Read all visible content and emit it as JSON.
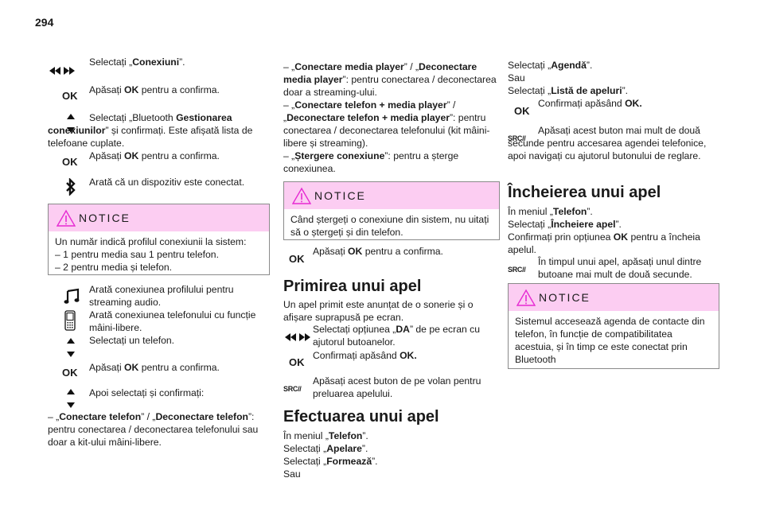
{
  "page_number": "294",
  "col1": {
    "p1": [
      "Selectați „",
      {
        "b": "Conexiuni"
      },
      "”."
    ],
    "p2": [
      "Apăsați ",
      {
        "b": "OK"
      },
      " pentru a confirma."
    ],
    "p3": [
      "Selectați „Bluetooth ",
      {
        "b": "Gestionarea conexiunilor"
      },
      "” și confirmați. Este afișată lista de telefoane cuplate."
    ],
    "p4": [
      "Apăsați ",
      {
        "b": "OK"
      },
      " pentru a confirma."
    ],
    "p5": [
      "Arată că un dispozitiv este conectat."
    ],
    "notice": {
      "title": "NOTICE",
      "lines": [
        [
          "Un număr indică profilul conexiunii la sistem:"
        ],
        [
          "–  1 pentru media sau 1 pentru telefon."
        ],
        [
          "–  2 pentru media și telefon."
        ]
      ]
    },
    "p6": [
      "Arată conexiunea profilului pentru streaming audio."
    ],
    "p7": [
      "Arată conexiunea telefonului cu funcție mâini-libere."
    ],
    "p8": [
      "Selectați un telefon."
    ],
    "p9": [
      "Apăsați ",
      {
        "b": "OK"
      },
      " pentru a confirma."
    ],
    "p10": [
      "Apoi selectați și confirmați:"
    ],
    "p11": [
      "–  „",
      {
        "b": "Conectare telefon"
      },
      "” / „",
      {
        "b": "Deconectare telefon"
      },
      "”: pentru conectarea / deconectarea telefonului sau doar a kit-ului mâini-libere."
    ]
  },
  "col2": {
    "p1": [
      "–  „",
      {
        "b": "Conectare media player"
      },
      "” / „",
      {
        "b": "Deconectare media player"
      },
      "”: pentru conectarea / deconectarea doar a streaming-ului."
    ],
    "p2": [
      "–  „",
      {
        "b": "Conectare telefon + media player"
      },
      "” / „",
      {
        "b": "Deconectare telefon + media player"
      },
      "”: pentru conectarea / deconectarea telefonului (kit mâini-libere și streaming)."
    ],
    "p3": [
      "–  „",
      {
        "b": "Ștergere conexiune"
      },
      "”: pentru a șterge conexiunea."
    ],
    "notice": {
      "title": "NOTICE",
      "lines": [
        [
          "Când ștergeți o conexiune din sistem, nu uitați să o ștergeți și din telefon."
        ]
      ]
    },
    "p4": [
      "Apăsați ",
      {
        "b": "OK"
      },
      " pentru a confirma."
    ],
    "heading1": "Primirea unui apel",
    "p5": [
      "Un apel primit este anunțat de o sonerie și o afișare suprapusă pe ecran."
    ],
    "p6": [
      "Selectați opțiunea „",
      {
        "b": "DA"
      },
      "” de pe ecran cu ajutorul butoanelor."
    ],
    "p7": [
      "Confirmați apăsând ",
      {
        "b": "OK."
      }
    ],
    "p8": [
      "Apăsați acest buton de pe volan pentru preluarea apelului."
    ],
    "heading2": "Efectuarea unui apel",
    "p9": [
      "În meniul „",
      {
        "b": "Telefon"
      },
      "”."
    ],
    "p10": [
      "Selectați „",
      {
        "b": "Apelare"
      },
      "”."
    ],
    "p11": [
      "Selectați „",
      {
        "b": "Formează"
      },
      "”."
    ],
    "p12": [
      "Sau"
    ]
  },
  "col3": {
    "p1": [
      "Selectați „",
      {
        "b": "Agendă"
      },
      "”."
    ],
    "p2": [
      "Sau"
    ],
    "p3": [
      "Selectați „",
      {
        "b": "Listă de apeluri"
      },
      "”."
    ],
    "p4": [
      "Confirmați apăsând ",
      {
        "b": "OK."
      }
    ],
    "p5": [
      "Apăsați acest buton mai mult de două secunde pentru accesarea agendei telefonice, apoi navigați cu ajutorul butonului de reglare."
    ],
    "heading1": "Încheierea unui apel",
    "p6": [
      "În meniul „",
      {
        "b": "Telefon"
      },
      "”."
    ],
    "p7": [
      "Selectați „",
      {
        "b": "Încheiere apel"
      },
      "”."
    ],
    "p8": [
      "Confirmați prin opțiunea ",
      {
        "b": "OK"
      },
      " pentru a încheia apelul."
    ],
    "p9": [
      "În timpul unui apel, apăsați unul dintre butoane mai mult de două secunde."
    ],
    "notice": {
      "title": "NOTICE",
      "lines": [
        [
          "Sistemul accesează agenda de contacte din telefon, în funcție de compatibilitatea acestuia, și în timp ce este conectat prin Bluetooth"
        ]
      ]
    }
  },
  "icons": {
    "ok_label": "OK",
    "src_label": "SRC//",
    "notice_color": "#e62ad2",
    "notice_bg": "#fccdf2"
  }
}
